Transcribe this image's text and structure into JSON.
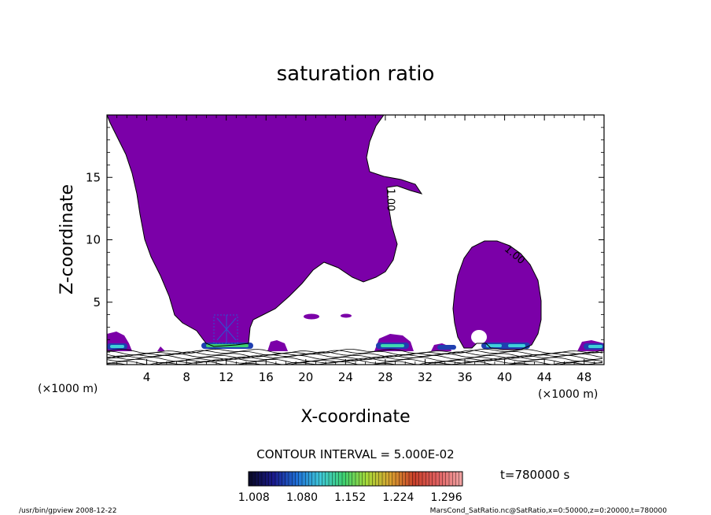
{
  "chart_data": {
    "type": "contour",
    "title": "saturation ratio",
    "xlabel": "X-coordinate",
    "ylabel": "Z-coordinate",
    "x_unit_left": "(×1000 m)",
    "x_unit_right": "(×1000 m)",
    "xlim": [
      0,
      50
    ],
    "ylim": [
      0,
      20
    ],
    "x_ticks": [
      4,
      8,
      12,
      16,
      20,
      24,
      28,
      32,
      36,
      40,
      44,
      48
    ],
    "y_ticks": [
      5,
      10,
      15
    ],
    "contour_interval_text": "CONTOUR INTERVAL = 5.000E-02",
    "contour_labels": [
      {
        "text": "1.00",
        "x": 28.2,
        "z": 13.2,
        "rotate": 90
      },
      {
        "text": "1.00",
        "x": 40.8,
        "z": 8.6,
        "rotate": 40
      }
    ],
    "colorbar": {
      "tick_labels": [
        "1.008",
        "1.080",
        "1.152",
        "1.224",
        "1.296"
      ],
      "min": 1.0,
      "max": 1.32,
      "colors": [
        "#0a0a2a",
        "#1b1b8c",
        "#1f6fd6",
        "#3fc8d8",
        "#3fd070",
        "#a8d838",
        "#d8a030",
        "#c8402a",
        "#e06060",
        "#f0a0a0"
      ]
    },
    "time_label": "t=780000 s",
    "footer_left": "/usr/bin/gpview  2008-12-22",
    "footer_right": "MarsCond_SatRatio.nc@SatRatio,x=0:50000,z=0:20000,t=780000",
    "fill_color": "#7b00a8"
  }
}
